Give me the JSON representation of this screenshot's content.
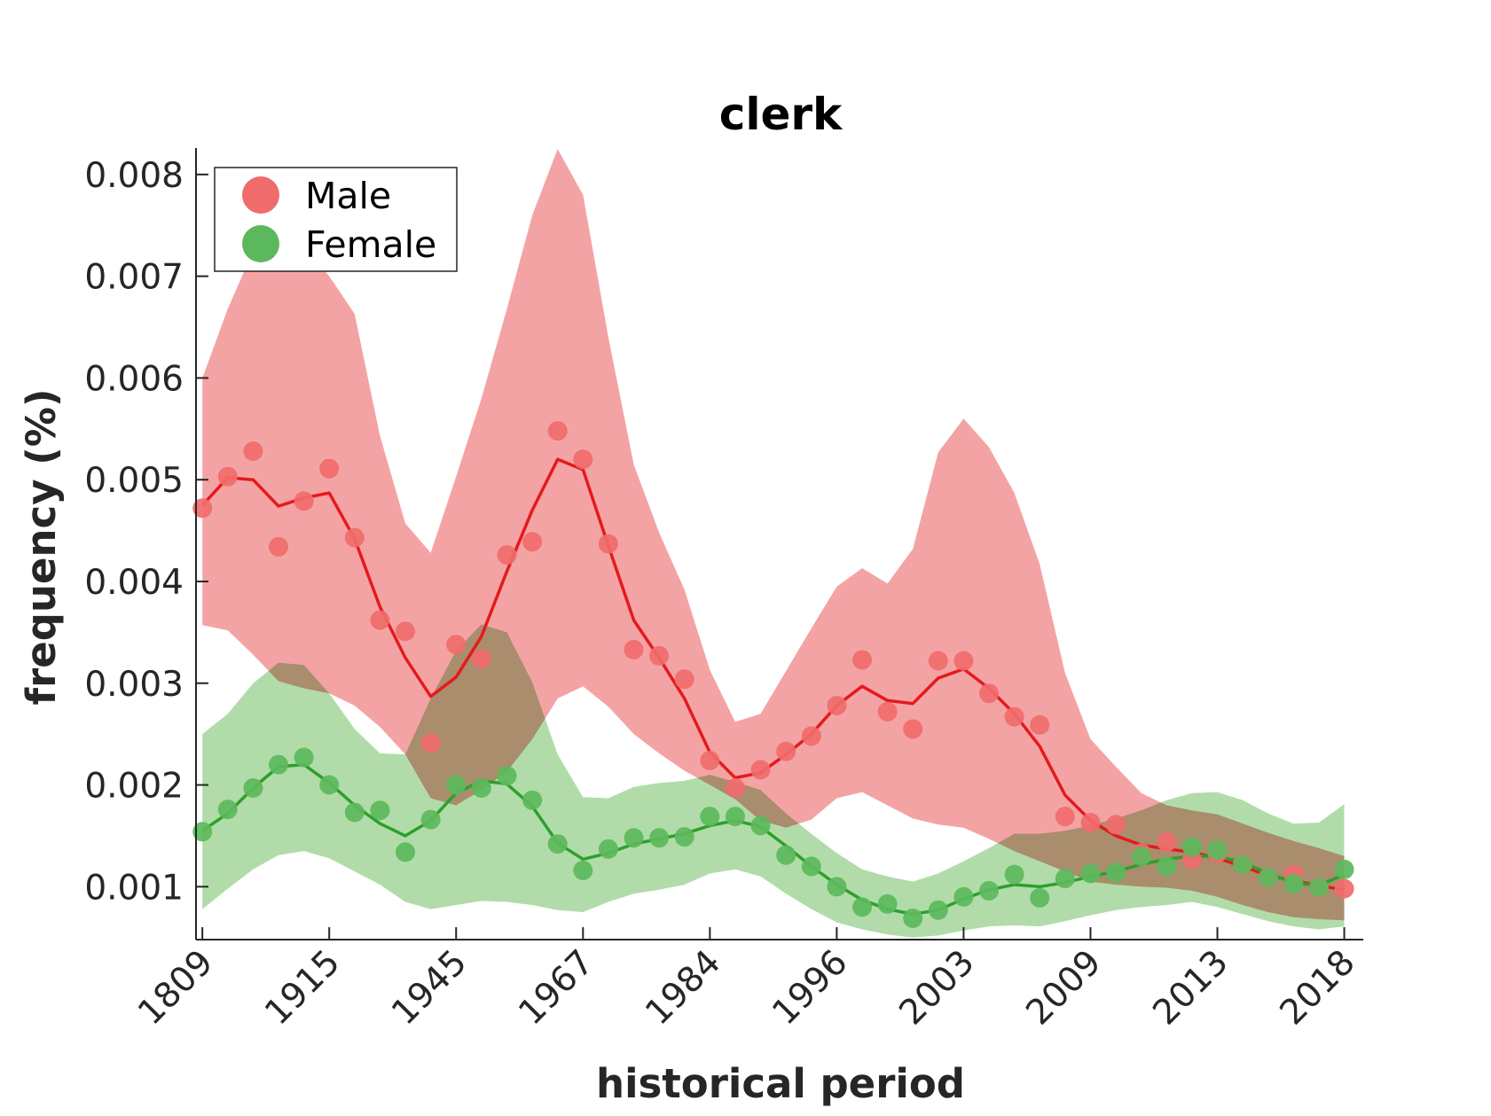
{
  "chart_data": {
    "type": "scatter",
    "title": "clerk",
    "xlabel": "historical period",
    "ylabel": "frequency (%)",
    "x_tick_labels": [
      "1809",
      "1915",
      "1945",
      "1967",
      "1984",
      "1996",
      "2003",
      "2009",
      "2013",
      "2018"
    ],
    "y_ticks": [
      0.001,
      0.002,
      0.003,
      0.004,
      0.005,
      0.006,
      0.007,
      0.008
    ],
    "y_tick_labels": [
      "0.001",
      "0.002",
      "0.003",
      "0.004",
      "0.005",
      "0.006",
      "0.007",
      "0.008"
    ],
    "xlim": [
      -0.25,
      45.75
    ],
    "ylim": [
      0.00048,
      0.00826
    ],
    "legend_position": "top-left",
    "series": [
      {
        "name": "Male",
        "color": "#e41a1c",
        "marker_color": "#f06b6b",
        "band_color": "#f4a3a5",
        "points": [
          0.00472,
          0.00503,
          0.00528,
          0.00434,
          0.00479,
          0.00511,
          0.00443,
          0.00362,
          0.00351,
          0.00241,
          0.00338,
          0.00324,
          0.00426,
          0.00439,
          0.00548,
          0.0052,
          0.00437,
          0.00333,
          0.00327,
          0.00304,
          0.00224,
          0.00197,
          0.00215,
          0.00233,
          0.00248,
          0.00278,
          0.00323,
          0.00272,
          0.00255,
          0.00322,
          0.00322,
          0.0029,
          0.00267,
          0.00259,
          0.00169,
          0.00163,
          0.00161,
          0.00133,
          0.00144,
          0.00127,
          0.00133,
          0.00123,
          0.00109,
          0.00112,
          0.00098,
          0.00098
        ],
        "line": [
          0.00475,
          0.00502,
          0.005,
          0.00474,
          0.00482,
          0.00487,
          0.00442,
          0.00375,
          0.00325,
          0.00287,
          0.00306,
          0.00346,
          0.0041,
          0.0047,
          0.0052,
          0.0051,
          0.00435,
          0.00362,
          0.00325,
          0.00285,
          0.00232,
          0.00207,
          0.00212,
          0.0023,
          0.0025,
          0.00278,
          0.00297,
          0.00283,
          0.0028,
          0.00305,
          0.00314,
          0.00295,
          0.0027,
          0.00238,
          0.0019,
          0.00165,
          0.0015,
          0.00141,
          0.00137,
          0.00134,
          0.00128,
          0.0012,
          0.00111,
          0.00106,
          0.00101,
          0.00097
        ],
        "upper": [
          0.006,
          0.00668,
          0.00725,
          0.0073,
          0.0073,
          0.007,
          0.00663,
          0.00543,
          0.00457,
          0.00428,
          0.00503,
          0.0058,
          0.00668,
          0.0076,
          0.00825,
          0.0078,
          0.0064,
          0.00515,
          0.00448,
          0.00392,
          0.00313,
          0.00262,
          0.0027,
          0.00312,
          0.00354,
          0.00395,
          0.00413,
          0.00398,
          0.00432,
          0.00527,
          0.0056,
          0.00532,
          0.00487,
          0.00417,
          0.0031,
          0.00245,
          0.00218,
          0.00192,
          0.0018,
          0.00175,
          0.00171,
          0.00162,
          0.00153,
          0.00145,
          0.00138,
          0.0013
        ],
        "lower": [
          0.00357,
          0.00352,
          0.00328,
          0.00302,
          0.00295,
          0.0029,
          0.00278,
          0.00257,
          0.0023,
          0.00187,
          0.0018,
          0.00195,
          0.00213,
          0.00245,
          0.00285,
          0.00297,
          0.00277,
          0.0025,
          0.00231,
          0.00214,
          0.002,
          0.00186,
          0.00165,
          0.00158,
          0.00166,
          0.00187,
          0.00193,
          0.0018,
          0.00167,
          0.00161,
          0.00158,
          0.00147,
          0.00135,
          0.00125,
          0.00115,
          0.00105,
          0.00102,
          0.001,
          0.00099,
          0.00096,
          0.0009,
          0.00082,
          0.00075,
          0.0007,
          0.00068,
          0.00067
        ]
      },
      {
        "name": "Female",
        "color": "#2ca02c",
        "marker_color": "#5cb85c",
        "band_color": "#a3d69a",
        "points": [
          0.00154,
          0.00176,
          0.00197,
          0.0022,
          0.00227,
          0.002,
          0.00173,
          0.00175,
          0.00134,
          0.00166,
          0.002,
          0.00197,
          0.00209,
          0.00185,
          0.00142,
          0.00116,
          0.00137,
          0.00148,
          0.00148,
          0.00149,
          0.00169,
          0.00169,
          0.0016,
          0.00131,
          0.0012,
          0.001,
          0.0008,
          0.00083,
          0.00069,
          0.00077,
          0.0009,
          0.00096,
          0.00112,
          0.00089,
          0.00108,
          0.00113,
          0.00114,
          0.0013,
          0.0012,
          0.00139,
          0.00136,
          0.00122,
          0.00109,
          0.00103,
          0.00099,
          0.00117
        ],
        "line": [
          0.00155,
          0.00172,
          0.00197,
          0.00218,
          0.0022,
          0.00202,
          0.0018,
          0.00162,
          0.0015,
          0.00165,
          0.00192,
          0.00204,
          0.00201,
          0.00179,
          0.00143,
          0.00127,
          0.00133,
          0.00142,
          0.00147,
          0.00152,
          0.0016,
          0.00165,
          0.00159,
          0.0014,
          0.0012,
          0.00102,
          0.00087,
          0.00078,
          0.00073,
          0.00077,
          0.00088,
          0.00097,
          0.00102,
          0.001,
          0.00104,
          0.0011,
          0.00115,
          0.00122,
          0.00127,
          0.0013,
          0.0013,
          0.00124,
          0.00113,
          0.00104,
          0.00101,
          0.00112
        ],
        "upper": [
          0.0025,
          0.0027,
          0.003,
          0.0032,
          0.00318,
          0.0029,
          0.00255,
          0.00231,
          0.0023,
          0.00285,
          0.00332,
          0.00358,
          0.0035,
          0.00301,
          0.0023,
          0.00188,
          0.00187,
          0.00198,
          0.00202,
          0.00204,
          0.0021,
          0.00203,
          0.00195,
          0.00172,
          0.00152,
          0.00133,
          0.00117,
          0.0011,
          0.00105,
          0.00113,
          0.00125,
          0.00138,
          0.00152,
          0.00152,
          0.00155,
          0.0016,
          0.00167,
          0.00175,
          0.00185,
          0.00192,
          0.00193,
          0.00185,
          0.00172,
          0.00162,
          0.00163,
          0.00181
        ],
        "lower": [
          0.00078,
          0.00098,
          0.00117,
          0.00131,
          0.00135,
          0.00128,
          0.00115,
          0.00102,
          0.00085,
          0.00078,
          0.00082,
          0.00086,
          0.00085,
          0.00082,
          0.00077,
          0.00075,
          0.00085,
          0.00093,
          0.00097,
          0.00102,
          0.00113,
          0.00117,
          0.0011,
          0.00093,
          0.00078,
          0.00065,
          0.00058,
          0.00053,
          0.0005,
          0.00052,
          0.00057,
          0.00061,
          0.00062,
          0.00061,
          0.00066,
          0.00072,
          0.00077,
          0.0008,
          0.00082,
          0.00085,
          0.0008,
          0.00073,
          0.00066,
          0.00061,
          0.00058,
          0.00061
        ]
      }
    ]
  }
}
